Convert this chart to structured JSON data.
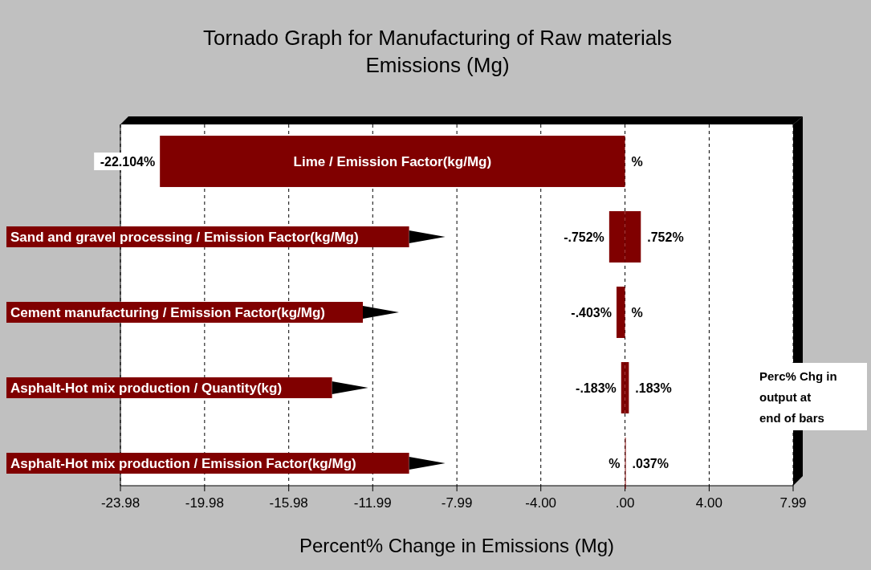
{
  "chart_data": {
    "type": "bar",
    "orientation": "horizontal",
    "title": "Tornado Graph for Manufacturing of Raw materials\nEmissions (Mg)",
    "xlabel": "Percent% Change in Emissions (Mg)",
    "categories": [
      "Lime / Emission Factor(kg/Mg)",
      "Sand and gravel processing / Emission Factor(kg/Mg)",
      "Cement manufacturing / Emission Factor(kg/Mg)",
      "Asphalt-Hot mix production / Quantity(kg)",
      "Asphalt-Hot mix production / Emission Factor(kg/Mg)"
    ],
    "series": [
      {
        "color": "#800000",
        "values": [
          -22.104,
          -0.752,
          -0.403,
          -0.183,
          0
        ],
        "value_labels": [
          "-22.104%",
          "-.752%",
          "-.403%",
          "-.183%",
          "%"
        ]
      },
      {
        "color": "#800000",
        "values": [
          0,
          0.752,
          0,
          0.183,
          0.037
        ],
        "value_labels": [
          "%",
          ".752%",
          "%",
          ".183%",
          ".037%"
        ]
      }
    ],
    "xlim": [
      -23.98,
      7.99
    ],
    "xticks": [
      -23.98,
      -19.98,
      -15.98,
      -11.99,
      -7.99,
      {
        "value": -4,
        "label": "-4.00"
      },
      {
        "value": 0,
        "label": ".00"
      },
      {
        "value": 4,
        "label": "4.00"
      },
      7.99
    ],
    "grid": "x",
    "annotations": [
      "Perc% Chg in output at end of bars"
    ]
  }
}
